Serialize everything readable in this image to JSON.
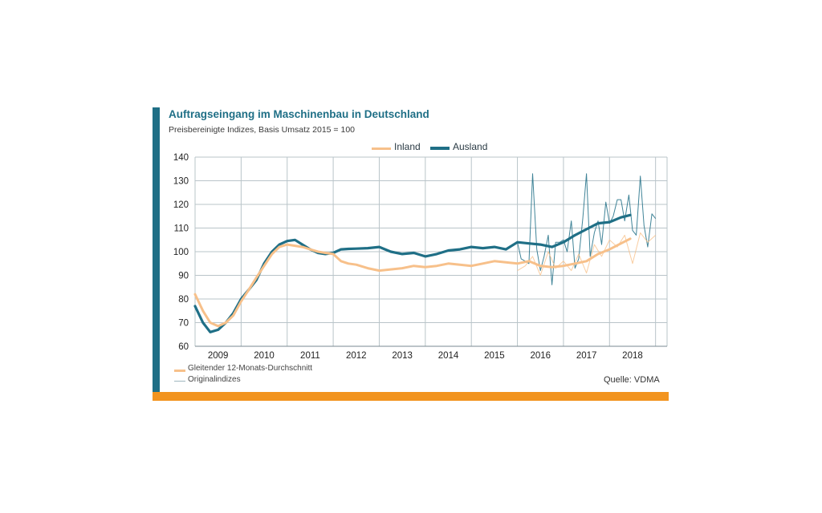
{
  "header": {
    "title": "Auftragseingang im Maschinenbau in Deutschland",
    "subtitle": "Preisbereinigte Indizes, Basis Umsatz 2015 = 100"
  },
  "legend": {
    "inland": "Inland",
    "ausland": "Ausland",
    "moving_avg": "Gleitender 12-Monats-Durchschnitt",
    "original": "Originalindizes"
  },
  "source": "Quelle: VDMA",
  "colors": {
    "inland": "#f7c08a",
    "ausland": "#1f6f86",
    "accent": "#1f6f86",
    "bottom_bar": "#f2941f",
    "grid": "#b9c4c9"
  },
  "chart_data": {
    "type": "line",
    "title": "Auftragseingang im Maschinenbau in Deutschland",
    "subtitle": "Preisbereinigte Indizes, Basis Umsatz 2015 = 100",
    "xlabel": "",
    "ylabel": "",
    "x_range": [
      2008.5,
      2018.75
    ],
    "ylim": [
      60,
      140
    ],
    "yticks": [
      60,
      70,
      80,
      90,
      100,
      110,
      120,
      130,
      140
    ],
    "xtick_labels": [
      "2009",
      "2010",
      "2011",
      "2012",
      "2013",
      "2014",
      "2015",
      "2016",
      "2017",
      "2018"
    ],
    "grid": true,
    "legend_position": "top-right",
    "series": [
      {
        "name": "Ausland",
        "kind": "Gleitender 12-Monats-Durchschnitt",
        "x": [
          2008.5,
          2008.67,
          2008.83,
          2009.0,
          2009.17,
          2009.33,
          2009.5,
          2009.67,
          2009.83,
          2010.0,
          2010.17,
          2010.33,
          2010.5,
          2010.67,
          2010.83,
          2011.0,
          2011.17,
          2011.33,
          2011.5,
          2011.67,
          2011.83,
          2012.0,
          2012.25,
          2012.5,
          2012.75,
          2013.0,
          2013.25,
          2013.5,
          2013.75,
          2014.0,
          2014.25,
          2014.5,
          2014.75,
          2015.0,
          2015.25,
          2015.5,
          2015.75,
          2016.0,
          2016.25,
          2016.5,
          2016.75,
          2017.0,
          2017.25,
          2017.5,
          2017.75,
          2017.95
        ],
        "y": [
          77,
          70,
          66,
          67,
          70,
          74,
          80,
          84,
          88,
          95,
          100,
          103,
          104.5,
          105,
          103,
          101,
          99.5,
          99,
          99.5,
          101,
          101.2,
          101.3,
          101.5,
          102,
          100,
          99,
          99.5,
          98,
          99,
          100.5,
          101,
          102,
          101.5,
          102,
          101,
          104,
          103.5,
          103,
          102,
          104,
          107,
          109.5,
          112,
          112.5,
          114.5,
          115.5
        ]
      },
      {
        "name": "Inland",
        "kind": "Gleitender 12-Monats-Durchschnitt",
        "x": [
          2008.5,
          2008.67,
          2008.83,
          2009.0,
          2009.17,
          2009.33,
          2009.5,
          2009.67,
          2009.83,
          2010.0,
          2010.17,
          2010.33,
          2010.5,
          2010.67,
          2010.83,
          2011.0,
          2011.17,
          2011.33,
          2011.5,
          2011.67,
          2011.83,
          2012.0,
          2012.25,
          2012.5,
          2012.75,
          2013.0,
          2013.25,
          2013.5,
          2013.75,
          2014.0,
          2014.25,
          2014.5,
          2014.75,
          2015.0,
          2015.25,
          2015.5,
          2015.75,
          2016.0,
          2016.25,
          2016.5,
          2016.75,
          2017.0,
          2017.25,
          2017.5,
          2017.75,
          2017.95
        ],
        "y": [
          82,
          75,
          70,
          68.5,
          70,
          73,
          79,
          84,
          89,
          94,
          99,
          102,
          103,
          102.5,
          102,
          101,
          100,
          99.5,
          99,
          96,
          95,
          94.5,
          93,
          92,
          92.5,
          93,
          94,
          93.5,
          94,
          95,
          94.5,
          94,
          95,
          96,
          95.5,
          95,
          96,
          94,
          93.5,
          94,
          95,
          96,
          99,
          101,
          103.5,
          105.5
        ]
      },
      {
        "name": "Ausland",
        "kind": "Originalindizes",
        "x": [
          2015.5,
          2015.58,
          2015.67,
          2015.75,
          2015.83,
          2015.92,
          2016.0,
          2016.08,
          2016.17,
          2016.25,
          2016.33,
          2016.42,
          2016.5,
          2016.58,
          2016.67,
          2016.75,
          2016.83,
          2016.92,
          2017.0,
          2017.08,
          2017.17,
          2017.25,
          2017.33,
          2017.42,
          2017.5,
          2017.58,
          2017.67,
          2017.75,
          2017.83,
          2017.92,
          2018.0,
          2018.08,
          2018.17,
          2018.25,
          2018.33,
          2018.42,
          2018.5
        ],
        "y": [
          104,
          97,
          96,
          95,
          133,
          101,
          92,
          98,
          107,
          86,
          104,
          104,
          105,
          100,
          113,
          93,
          97,
          114,
          133,
          98,
          108,
          113,
          103,
          121,
          112,
          115,
          122,
          122,
          113,
          124,
          109,
          107,
          132,
          111,
          102,
          116,
          114
        ]
      },
      {
        "name": "Inland",
        "kind": "Originalindizes",
        "x": [
          2015.5,
          2015.67,
          2015.83,
          2016.0,
          2016.17,
          2016.33,
          2016.5,
          2016.67,
          2016.83,
          2017.0,
          2017.17,
          2017.33,
          2017.5,
          2017.67,
          2017.83,
          2018.0,
          2018.17,
          2018.33,
          2018.5
        ],
        "y": [
          92,
          94,
          98,
          90,
          100,
          93,
          96,
          92,
          99,
          91,
          103,
          98,
          105,
          102,
          107,
          95,
          108,
          104,
          107
        ]
      }
    ]
  }
}
